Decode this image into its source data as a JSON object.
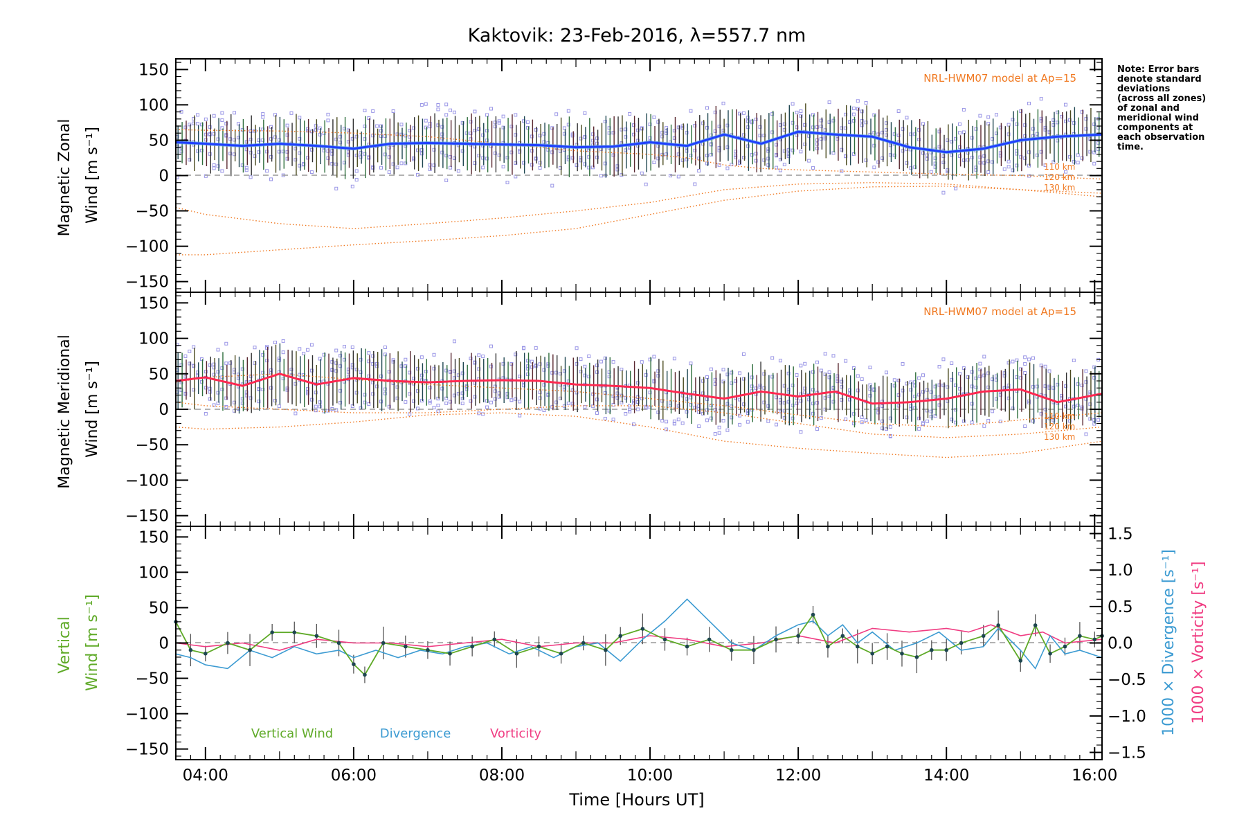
{
  "title": "Kaktovik: 23-Feb-2016, λ=557.7 nm",
  "note": [
    "Note: Error bars",
    "denote standard",
    "deviations",
    "(across all zones)",
    "of zonal and",
    "meridional wind",
    "components at",
    "each observation",
    "time."
  ],
  "colors": {
    "zonal_mean": "#1f3fff",
    "zonal_light": "#5aa0e6",
    "meridional_mean": "#ff2850",
    "scatter": "#9a96e6",
    "model": "#f07820",
    "vertical": "#5faa28",
    "divergence": "#3c9bd2",
    "vorticity": "#f03c82",
    "errorbar": "#222222"
  },
  "chart_data": [
    {
      "type": "line",
      "panel": "zonal",
      "ylabel": [
        "Magnetic Zonal",
        "Wind [m s⁻¹]"
      ],
      "ylim": [
        -165,
        165
      ],
      "xlim": [
        3.6,
        16.1
      ],
      "yticks": [
        -150,
        -100,
        -50,
        0,
        50,
        100,
        150
      ],
      "annotation": "NRL-HWM07 model at Ap=15",
      "model_labels": [
        "110 km",
        "120 km",
        "130 km"
      ],
      "series": [
        {
          "name": "mean",
          "x": [
            3.6,
            4.0,
            4.5,
            5.0,
            5.5,
            6.0,
            6.5,
            7.0,
            7.5,
            8.0,
            8.5,
            9.0,
            9.5,
            10.0,
            10.5,
            11.0,
            11.5,
            12.0,
            12.5,
            13.0,
            13.5,
            14.0,
            14.5,
            15.0,
            15.5,
            16.1
          ],
          "y": [
            47,
            45,
            42,
            45,
            42,
            38,
            45,
            46,
            45,
            44,
            43,
            40,
            41,
            47,
            42,
            58,
            45,
            62,
            58,
            55,
            40,
            33,
            38,
            50,
            55,
            58
          ]
        },
        {
          "name": "110 km",
          "x": [
            3.6,
            4.0,
            5.0,
            6.0,
            7.0,
            8.0,
            9.0,
            10.0,
            10.5,
            11.0,
            11.5,
            12.0,
            13.0,
            14.0,
            15.0,
            16.1
          ],
          "y": [
            65,
            64,
            63,
            60,
            55,
            45,
            35,
            30,
            25,
            15,
            10,
            8,
            5,
            2,
            0,
            -5
          ]
        },
        {
          "name": "120 km",
          "x": [
            3.6,
            4.0,
            5.0,
            6.0,
            7.0,
            8.0,
            9.0,
            10.0,
            11.0,
            12.0,
            13.0,
            14.0,
            15.0,
            16.1
          ],
          "y": [
            -45,
            -55,
            -68,
            -75,
            -68,
            -60,
            -50,
            -38,
            -20,
            -12,
            -10,
            -12,
            -20,
            -25
          ]
        },
        {
          "name": "130 km",
          "x": [
            3.6,
            4.0,
            5.0,
            6.0,
            7.0,
            8.0,
            9.0,
            10.0,
            11.0,
            12.0,
            13.0,
            14.0,
            15.0,
            16.1
          ],
          "y": [
            -112,
            -112,
            -105,
            -98,
            -92,
            -85,
            -75,
            -55,
            -35,
            -22,
            -16,
            -15,
            -20,
            -30
          ]
        }
      ]
    },
    {
      "type": "line",
      "panel": "meridional",
      "ylabel": [
        "Magnetic Meridional",
        "Wind [m s⁻¹]"
      ],
      "ylim": [
        -165,
        165
      ],
      "xlim": [
        3.6,
        16.1
      ],
      "yticks": [
        -150,
        -100,
        -50,
        0,
        50,
        100,
        150
      ],
      "annotation": "NRL-HWM07 model at Ap=15",
      "model_labels": [
        "110 km",
        "120 km",
        "130 km"
      ],
      "series": [
        {
          "name": "mean",
          "x": [
            3.6,
            4.0,
            4.5,
            5.0,
            5.5,
            6.0,
            6.5,
            7.0,
            7.5,
            8.0,
            8.5,
            9.0,
            9.5,
            10.0,
            10.5,
            11.0,
            11.5,
            12.0,
            12.5,
            13.0,
            13.5,
            14.0,
            14.5,
            15.0,
            15.5,
            16.1
          ],
          "y": [
            40,
            45,
            33,
            50,
            35,
            44,
            40,
            38,
            40,
            41,
            40,
            35,
            33,
            30,
            22,
            15,
            25,
            18,
            25,
            8,
            10,
            15,
            25,
            28,
            10,
            22
          ]
        },
        {
          "name": "110 km",
          "x": [
            3.6,
            4.0,
            5.0,
            6.0,
            7.0,
            8.0,
            9.0,
            10.0,
            11.0,
            12.0,
            13.0,
            14.0,
            15.0,
            16.1
          ],
          "y": [
            38,
            45,
            50,
            42,
            35,
            30,
            25,
            15,
            5,
            -8,
            -20,
            -25,
            -15,
            -5
          ]
        },
        {
          "name": "120 km",
          "x": [
            3.6,
            4.0,
            5.0,
            6.0,
            7.0,
            8.0,
            9.0,
            10.0,
            11.0,
            12.0,
            13.0,
            14.0,
            15.0,
            16.1
          ],
          "y": [
            10,
            5,
            0,
            -5,
            -5,
            0,
            5,
            5,
            -5,
            -20,
            -35,
            -40,
            -35,
            -25
          ]
        },
        {
          "name": "130 km",
          "x": [
            3.6,
            4.0,
            5.0,
            6.0,
            7.0,
            8.0,
            9.0,
            10.0,
            11.0,
            12.0,
            13.0,
            14.0,
            15.0,
            16.1
          ],
          "y": [
            -25,
            -28,
            -25,
            -18,
            -8,
            -5,
            -10,
            -25,
            -45,
            -55,
            -62,
            -68,
            -62,
            -45
          ]
        }
      ]
    },
    {
      "type": "line",
      "panel": "vertical",
      "ylabel": [
        "Vertical",
        "Wind [m s⁻¹]"
      ],
      "ylabel_right_1": "1000 × Divergence [s⁻¹]",
      "ylabel_right_2": "1000 × Vorticity [s⁻¹]",
      "ylim": [
        -165,
        165
      ],
      "y2lim": [
        -1.6,
        1.6
      ],
      "xlim": [
        3.6,
        16.1
      ],
      "yticks": [
        -150,
        -100,
        -50,
        0,
        50,
        100,
        150
      ],
      "y2ticks": [
        -1.5,
        -1.0,
        -0.5,
        0.0,
        0.5,
        1.0,
        1.5
      ],
      "y2ticklabels": [
        "−1.5",
        "−1.0",
        "−0.5",
        "0.0",
        "0.5",
        "1.0",
        "1.5"
      ],
      "xlabel": "Time [Hours UT]",
      "xticks": [
        4,
        6,
        8,
        10,
        12,
        14,
        16
      ],
      "xticklabels": [
        "04:00",
        "06:00",
        "08:00",
        "10:00",
        "12:00",
        "14:00",
        "16:00"
      ],
      "legend": [
        "Vertical Wind",
        "Divergence",
        "Vorticity"
      ],
      "series": [
        {
          "name": "Vertical Wind",
          "x": [
            3.6,
            3.8,
            4.0,
            4.3,
            4.6,
            4.9,
            5.2,
            5.5,
            5.8,
            6.0,
            6.15,
            6.4,
            6.7,
            7.0,
            7.3,
            7.6,
            7.9,
            8.2,
            8.5,
            8.8,
            9.1,
            9.4,
            9.6,
            9.9,
            10.2,
            10.5,
            10.8,
            11.1,
            11.4,
            11.7,
            12.0,
            12.2,
            12.4,
            12.6,
            12.8,
            13.0,
            13.2,
            13.4,
            13.6,
            13.8,
            14.0,
            14.2,
            14.5,
            14.7,
            15.0,
            15.2,
            15.4,
            15.6,
            15.8,
            16.0,
            16.1
          ],
          "y": [
            30,
            -10,
            -15,
            0,
            -10,
            15,
            15,
            10,
            0,
            -30,
            -45,
            0,
            -5,
            -10,
            -15,
            -5,
            5,
            -15,
            -5,
            -15,
            0,
            -10,
            10,
            20,
            5,
            -5,
            5,
            -10,
            -10,
            5,
            10,
            40,
            -5,
            10,
            -5,
            -15,
            -5,
            -15,
            -20,
            -10,
            -10,
            0,
            10,
            25,
            -25,
            25,
            -15,
            -5,
            10,
            5,
            10
          ]
        },
        {
          "name": "Divergence",
          "x": [
            3.6,
            3.8,
            4.0,
            4.3,
            4.6,
            4.9,
            5.2,
            5.5,
            5.8,
            6.0,
            6.3,
            6.6,
            6.9,
            7.2,
            7.5,
            7.8,
            8.1,
            8.4,
            8.7,
            9.0,
            9.3,
            9.6,
            9.9,
            10.2,
            10.5,
            10.8,
            11.1,
            11.4,
            11.7,
            12.0,
            12.2,
            12.4,
            12.6,
            12.8,
            13.0,
            13.3,
            13.6,
            13.9,
            14.2,
            14.5,
            14.7,
            15.0,
            15.2,
            15.4,
            15.6,
            15.8,
            16.1
          ],
          "y": [
            -0.15,
            -0.2,
            -0.3,
            -0.35,
            -0.1,
            -0.2,
            -0.05,
            -0.15,
            -0.1,
            -0.2,
            -0.1,
            -0.2,
            -0.1,
            -0.15,
            -0.05,
            0.0,
            -0.15,
            -0.05,
            -0.2,
            -0.05,
            0.0,
            -0.25,
            0.05,
            0.3,
            0.6,
            0.3,
            0.0,
            -0.1,
            0.1,
            0.25,
            0.3,
            0.1,
            0.25,
            0.0,
            0.15,
            -0.1,
            0.0,
            0.15,
            -0.1,
            -0.05,
            0.2,
            -0.1,
            -0.35,
            0.1,
            -0.15,
            -0.1,
            -0.2
          ]
        },
        {
          "name": "Vorticity",
          "x": [
            3.6,
            4.0,
            4.5,
            5.0,
            5.5,
            6.0,
            6.5,
            7.0,
            7.5,
            8.0,
            8.5,
            9.0,
            9.5,
            10.0,
            10.5,
            11.0,
            11.5,
            12.0,
            12.5,
            13.0,
            13.5,
            14.0,
            14.3,
            14.6,
            15.0,
            15.3,
            15.6,
            16.1
          ],
          "y": [
            0.0,
            -0.05,
            0.0,
            -0.1,
            0.05,
            0.0,
            0.0,
            -0.05,
            0.0,
            0.05,
            -0.05,
            0.0,
            0.0,
            0.1,
            0.05,
            -0.05,
            0.0,
            0.1,
            0.0,
            0.2,
            0.15,
            0.2,
            0.15,
            0.25,
            0.1,
            0.15,
            0.0,
            0.05
          ]
        }
      ]
    }
  ]
}
